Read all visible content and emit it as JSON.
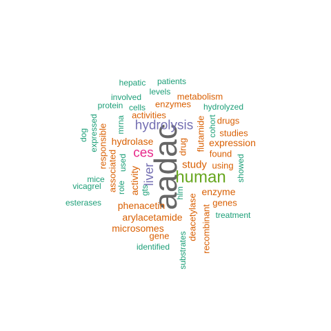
{
  "colors": {
    "teal": "#1b9e77",
    "orange": "#d95f02",
    "purple": "#7570b3",
    "magenta": "#e7298a",
    "green": "#66a61e",
    "gray": "#666666"
  },
  "words": [
    {
      "text": "aadac",
      "color": "gray"
    },
    {
      "text": "human",
      "color": "green"
    },
    {
      "text": "hydrolysis",
      "color": "purple"
    },
    {
      "text": "ces",
      "color": "magenta"
    },
    {
      "text": "liver",
      "color": "purple"
    },
    {
      "text": "study",
      "color": "orange"
    },
    {
      "text": "enzyme",
      "color": "orange"
    },
    {
      "text": "hydrolase",
      "color": "orange"
    },
    {
      "text": "activity",
      "color": "orange"
    },
    {
      "text": "expression",
      "color": "orange"
    },
    {
      "text": "phenacetin",
      "color": "orange"
    },
    {
      "text": "arylacetamide",
      "color": "orange"
    },
    {
      "text": "microsomes",
      "color": "orange"
    },
    {
      "text": "metabolism",
      "color": "orange"
    },
    {
      "text": "enzymes",
      "color": "orange"
    },
    {
      "text": "activities",
      "color": "orange"
    },
    {
      "text": "drugs",
      "color": "orange"
    },
    {
      "text": "studies",
      "color": "orange"
    },
    {
      "text": "found",
      "color": "orange"
    },
    {
      "text": "using",
      "color": "orange"
    },
    {
      "text": "genes",
      "color": "orange"
    },
    {
      "text": "gene",
      "color": "orange"
    },
    {
      "text": "responsible",
      "color": "orange"
    },
    {
      "text": "associated",
      "color": "orange"
    },
    {
      "text": "flutamide",
      "color": "orange"
    },
    {
      "text": "drug",
      "color": "orange"
    },
    {
      "text": "deacetylase",
      "color": "orange"
    },
    {
      "text": "recombinant",
      "color": "orange"
    },
    {
      "text": "hepatic",
      "color": "teal"
    },
    {
      "text": "patients",
      "color": "teal"
    },
    {
      "text": "involved",
      "color": "teal"
    },
    {
      "text": "levels",
      "color": "teal"
    },
    {
      "text": "protein",
      "color": "teal"
    },
    {
      "text": "cells",
      "color": "teal"
    },
    {
      "text": "hydrolyzed",
      "color": "teal"
    },
    {
      "text": "expressed",
      "color": "teal"
    },
    {
      "text": "dog",
      "color": "teal"
    },
    {
      "text": "mrna",
      "color": "teal"
    },
    {
      "text": "cohort",
      "color": "teal"
    },
    {
      "text": "used",
      "color": "teal"
    },
    {
      "text": "showed",
      "color": "teal"
    },
    {
      "text": "mice",
      "color": "teal"
    },
    {
      "text": "vicagrel",
      "color": "teal"
    },
    {
      "text": "role",
      "color": "teal"
    },
    {
      "text": "gts",
      "color": "teal"
    },
    {
      "text": "hlm",
      "color": "teal"
    },
    {
      "text": "esterases",
      "color": "teal"
    },
    {
      "text": "treatment",
      "color": "teal"
    },
    {
      "text": "identified",
      "color": "teal"
    },
    {
      "text": "substrates",
      "color": "teal"
    }
  ]
}
